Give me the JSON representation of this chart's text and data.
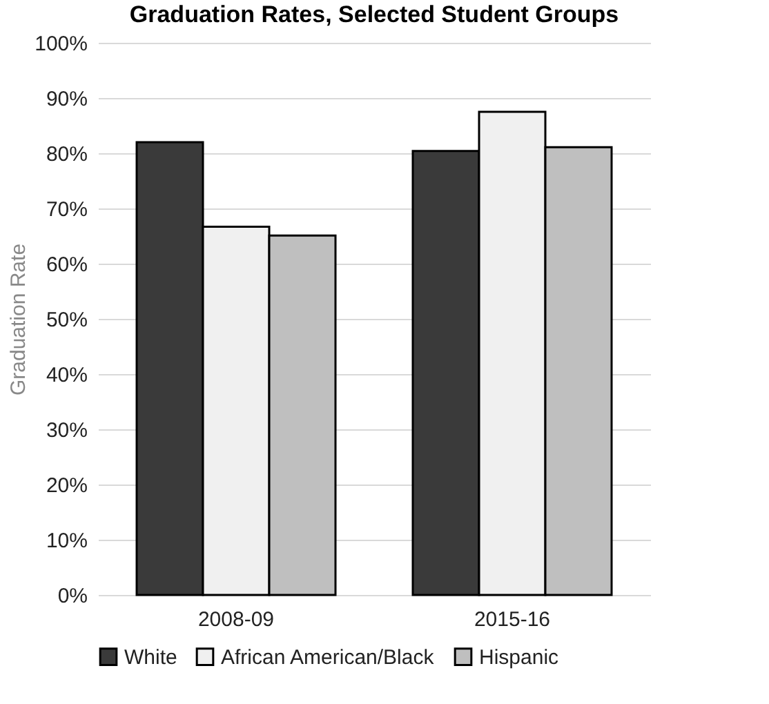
{
  "chart_data": {
    "type": "bar",
    "title": "Graduation Rates, Selected Student Groups",
    "ylabel": "Graduation Rate",
    "categories": [
      "2008-09",
      "2015-16"
    ],
    "series": [
      {
        "name": "White",
        "color": "#3a3a3a",
        "values": [
          82.0,
          80.4
        ]
      },
      {
        "name": "African American/Black",
        "color": "#f0f0f0",
        "values": [
          66.7,
          87.5
        ]
      },
      {
        "name": "Hispanic",
        "color": "#bfbfbf",
        "values": [
          65.1,
          81.1
        ]
      }
    ],
    "ylim": [
      0,
      100
    ],
    "yticks": [
      {
        "value": 0,
        "label": "0%"
      },
      {
        "value": 10,
        "label": "10%"
      },
      {
        "value": 20,
        "label": "20%"
      },
      {
        "value": 30,
        "label": "30%"
      },
      {
        "value": 40,
        "label": "40%"
      },
      {
        "value": 50,
        "label": "50%"
      },
      {
        "value": 60,
        "label": "60%"
      },
      {
        "value": 70,
        "label": "70%"
      },
      {
        "value": 80,
        "label": "80%"
      },
      {
        "value": 90,
        "label": "90%"
      },
      {
        "value": 100,
        "label": "100%"
      }
    ],
    "grid": "y",
    "legend": "bottom"
  }
}
